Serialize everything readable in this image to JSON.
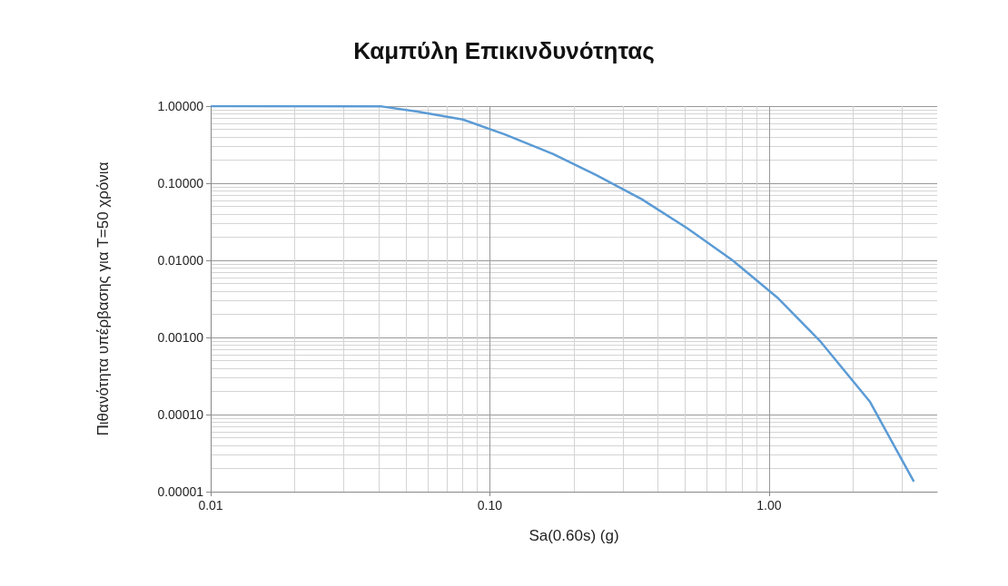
{
  "chart_data": {
    "type": "line",
    "title": "Καμπύλη Επικινδυνότητας",
    "xlabel": "Sa(0.60s) (g)",
    "ylabel": "Πιθανότητα υπέρβασης για T=50 χρόνια",
    "log": "xy",
    "grid": true,
    "marker": "none",
    "line_style": "solid",
    "x": [
      0.01,
      0.041,
      0.055,
      0.08,
      0.113,
      0.168,
      0.24,
      0.35,
      0.51,
      0.74,
      1.07,
      1.53,
      2.3,
      3.3
    ],
    "series": [
      {
        "color": "#5b9bd5",
        "values": [
          1,
          0.99,
          0.85,
          0.67,
          0.43,
          0.24,
          0.128,
          0.062,
          0.026,
          0.01,
          0.0033,
          0.00088,
          0.000146,
          1.35e-05
        ]
      }
    ],
    "xlim": [
      0.01,
      4
    ],
    "xticks": [
      {
        "value": 0.01,
        "label": "0.01"
      },
      {
        "value": 0.1,
        "label": "0.10"
      },
      {
        "value": 1,
        "label": "1.00"
      }
    ],
    "ylim": [
      1e-05,
      1
    ],
    "yticks": [
      {
        "value": 1e-05,
        "label": "0.00001"
      },
      {
        "value": 0.0001,
        "label": "0.00010"
      },
      {
        "value": 0.001,
        "label": "0.00100"
      },
      {
        "value": 0.01,
        "label": "0.01000"
      },
      {
        "value": 0.1,
        "label": "0.10000"
      },
      {
        "value": 1,
        "label": "1.00000"
      }
    ]
  }
}
